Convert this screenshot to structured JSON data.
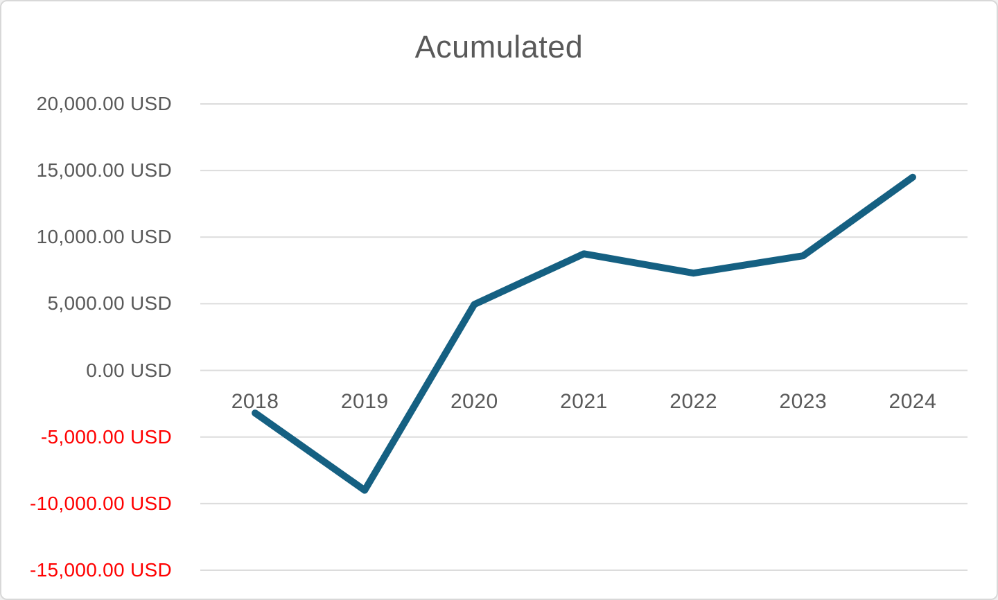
{
  "chart_data": {
    "type": "line",
    "title": "Acumulated",
    "categories": [
      "2018",
      "2019",
      "2020",
      "2021",
      "2022",
      "2023",
      "2024"
    ],
    "series": [
      {
        "name": "Acumulated",
        "values": [
          -3200,
          -9000,
          4950,
          8750,
          7300,
          8600,
          14500
        ]
      }
    ],
    "xlabel": "",
    "ylabel": "",
    "ylim": [
      -15000,
      20000
    ],
    "y_tick_step": 5000,
    "y_ticks": [
      {
        "value": 20000,
        "label": "20,000.00 USD"
      },
      {
        "value": 15000,
        "label": "15,000.00 USD"
      },
      {
        "value": 10000,
        "label": "10,000.00 USD"
      },
      {
        "value": 5000,
        "label": "5,000.00 USD"
      },
      {
        "value": 0,
        "label": "0.00 USD"
      },
      {
        "value": -5000,
        "label": "-5,000.00 USD"
      },
      {
        "value": -10000,
        "label": "-10,000.00 USD"
      },
      {
        "value": -15000,
        "label": "-15,000.00 USD"
      }
    ],
    "grid": true,
    "legend_position": "none",
    "colors": {
      "line": "#156082",
      "title_text": "#595959",
      "tick_positive": "#595959",
      "tick_negative": "#ff0000",
      "gridline": "#dcdcdc",
      "background": "#ffffff",
      "frame_border": "#d8d8d8"
    }
  }
}
